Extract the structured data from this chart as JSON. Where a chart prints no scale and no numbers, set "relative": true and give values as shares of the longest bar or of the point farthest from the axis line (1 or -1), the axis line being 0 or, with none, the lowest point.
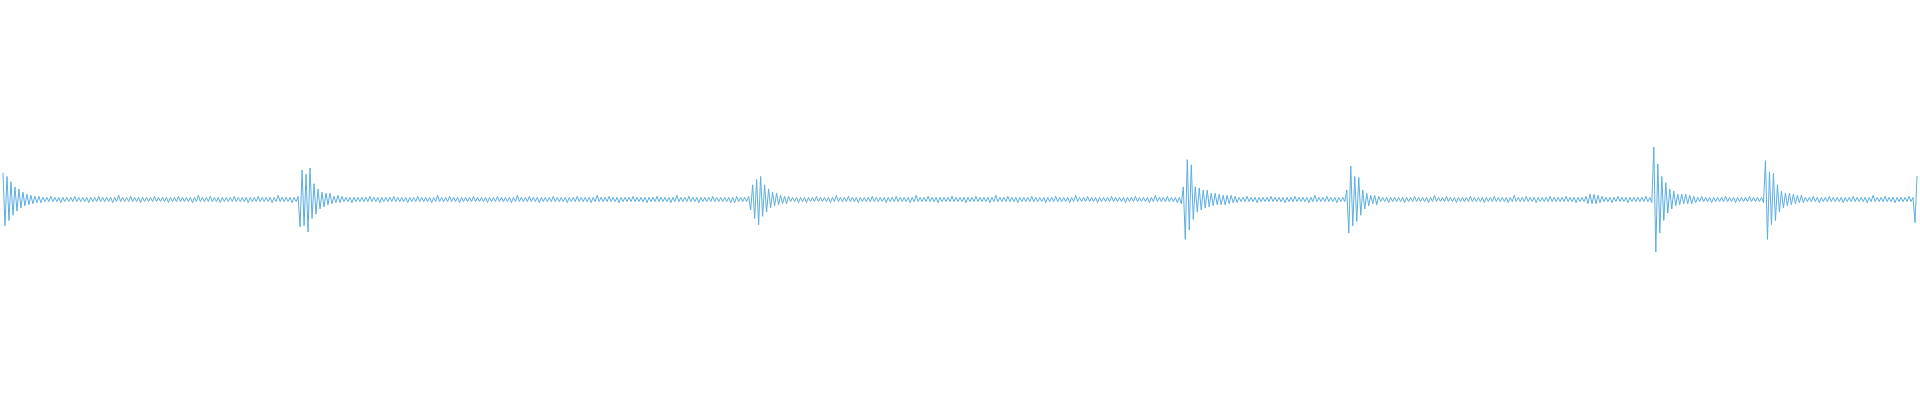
{
  "chart_data": {
    "type": "line",
    "relative": true,
    "color": "#5dade2",
    "marker": "none",
    "categories": [
      null,
      null,
      null,
      null,
      null,
      null,
      null,
      null,
      null,
      null,
      null,
      null,
      null,
      null,
      null,
      null,
      null,
      null,
      null,
      null,
      null,
      null,
      null,
      null,
      null,
      null,
      null,
      null,
      null,
      null,
      null,
      null,
      null,
      null,
      null,
      null,
      null,
      null,
      null,
      null,
      null,
      null,
      null,
      null,
      null,
      null,
      null,
      null,
      null,
      null,
      null,
      null,
      null,
      null,
      null,
      null,
      null,
      null,
      null,
      null,
      null,
      null,
      null,
      null,
      null,
      null,
      null,
      null,
      null,
      null,
      null,
      null,
      null,
      null,
      null,
      null,
      null,
      null,
      null,
      null,
      null,
      null,
      null,
      null,
      null,
      null,
      null,
      null,
      null,
      null,
      null,
      null,
      null,
      null,
      null,
      null,
      null,
      null,
      null,
      null,
      null,
      null,
      null,
      null,
      null,
      null,
      null,
      null,
      null,
      null,
      null,
      null,
      null,
      null,
      null,
      null,
      null,
      null,
      null,
      null,
      null,
      null,
      null,
      null,
      null,
      null,
      null,
      null,
      null,
      null,
      null,
      null,
      null,
      null,
      null,
      null,
      null,
      null,
      null,
      null,
      null,
      null,
      null,
      null,
      null,
      null,
      null,
      null,
      null,
      null,
      null,
      null,
      null,
      null,
      null,
      null,
      null,
      null,
      null,
      null,
      null,
      null,
      null,
      null,
      null,
      null,
      null,
      null,
      null,
      null,
      null,
      null,
      null,
      null,
      null,
      null,
      null,
      null,
      null,
      null,
      null,
      null,
      null,
      null,
      null,
      null,
      null,
      null,
      null,
      null,
      null,
      null,
      null,
      null,
      null,
      null,
      null,
      null,
      null,
      null,
      null,
      null,
      null,
      null,
      null,
      null,
      null,
      null,
      null,
      null,
      null,
      null,
      null,
      null,
      null,
      null,
      null,
      null,
      null,
      null,
      null,
      null,
      null,
      null,
      null,
      null,
      null,
      null,
      null,
      null,
      null,
      null,
      null,
      null,
      null,
      null,
      null,
      null,
      null,
      null,
      null,
      null,
      null,
      null,
      null,
      null,
      null,
      null,
      null,
      null,
      null,
      null,
      null,
      null,
      null,
      null,
      null,
      null,
      null,
      null,
      null,
      null,
      null,
      null,
      null,
      null,
      null,
      null,
      null,
      null,
      null,
      null,
      null,
      null,
      null,
      null,
      null,
      null,
      null,
      null,
      null,
      null,
      null,
      null,
      null,
      null,
      null,
      null,
      null,
      null,
      null,
      null,
      null,
      null,
      null,
      null,
      null,
      null,
      null,
      null,
      null,
      null,
      null,
      null,
      null,
      null,
      null,
      null,
      null,
      null,
      null,
      null,
      null,
      null,
      null,
      null,
      null,
      null,
      null,
      null,
      null,
      null,
      null,
      null,
      null,
      null,
      null,
      null,
      null,
      null,
      null,
      null,
      null,
      null,
      null,
      null,
      null,
      null,
      null,
      null,
      null,
      null,
      null,
      null,
      null,
      null,
      null,
      null,
      null,
      null,
      null,
      null,
      null,
      null,
      null,
      null,
      null,
      null,
      null,
      null,
      null,
      null,
      null,
      null,
      null,
      null,
      null,
      null,
      null,
      null,
      null,
      null,
      null,
      null,
      null,
      null,
      null,
      null,
      null,
      null,
      null,
      null,
      null,
      null,
      null,
      null,
      null,
      null,
      null,
      null,
      null,
      null,
      null,
      null,
      null,
      null,
      null,
      null,
      null,
      null,
      null,
      null,
      null,
      null,
      null,
      null,
      null,
      null,
      null,
      null,
      null,
      null,
      null,
      null,
      null,
      null,
      null,
      null,
      null,
      null,
      null,
      null,
      null,
      null,
      null,
      null,
      null,
      null,
      null,
      null,
      null,
      null,
      null,
      null,
      null,
      null,
      null,
      null,
      null,
      null,
      null,
      null,
      null,
      null,
      null,
      null,
      null,
      null,
      null,
      null,
      null,
      null,
      null,
      null,
      null,
      null,
      null,
      null,
      null,
      null,
      null,
      null,
      null,
      null,
      null,
      null,
      null,
      null,
      null,
      null,
      null,
      null,
      null,
      null,
      null,
      null,
      null,
      null,
      null,
      null,
      null,
      null,
      null,
      null,
      null,
      null,
      null,
      null,
      null,
      null,
      null,
      null,
      null,
      null,
      null,
      null,
      null,
      null,
      null,
      null,
      null,
      null,
      null,
      null,
      null,
      null,
      null,
      null,
      null,
      null,
      null,
      null,
      null,
      null,
      null,
      null,
      null,
      null,
      null,
      null,
      null,
      null,
      null,
      null,
      null,
      null,
      null,
      null,
      null,
      null,
      null,
      null,
      null,
      null,
      null,
      null,
      null,
      null,
      null,
      null,
      null,
      null,
      null,
      null,
      null,
      null,
      null,
      null,
      null,
      null,
      null,
      null,
      null,
      null,
      null,
      null,
      null,
      null,
      null,
      null,
      null,
      null,
      null,
      null,
      null,
      null,
      null,
      null,
      null,
      null,
      null,
      null,
      null,
      null,
      null,
      null,
      null,
      null,
      null,
      null,
      null,
      null,
      null,
      null,
      null,
      null,
      null,
      null,
      null,
      null,
      null,
      null,
      null,
      null,
      null,
      null,
      null,
      null,
      null,
      null,
      null,
      null,
      null,
      null,
      null,
      null,
      null,
      null,
      null,
      null,
      null,
      null,
      null,
      null,
      null,
      null,
      null,
      null,
      null,
      null,
      null,
      null,
      null,
      null,
      null,
      null,
      null,
      null,
      null,
      null,
      null,
      null,
      null,
      null,
      null,
      null,
      null,
      null,
      null,
      null,
      null,
      null,
      null,
      null,
      null,
      null,
      null,
      null,
      null,
      null,
      null,
      null,
      null,
      null,
      null,
      null,
      null,
      null,
      null,
      null,
      null,
      null,
      null,
      null,
      null,
      null,
      null,
      null,
      null,
      null,
      null,
      null,
      null,
      null,
      null,
      null,
      null,
      null,
      null,
      null,
      null,
      null,
      null,
      null,
      null,
      null,
      null,
      null,
      null,
      null,
      null,
      null,
      null,
      null,
      null,
      null,
      null,
      null,
      null,
      null,
      null,
      null,
      null,
      null,
      null,
      null,
      null,
      null,
      null,
      null,
      null,
      null,
      null,
      null,
      null,
      null,
      null,
      null,
      null,
      null,
      null,
      null,
      null,
      null,
      null,
      null,
      null,
      null,
      null,
      null,
      null,
      null,
      null,
      null,
      null,
      null,
      null,
      null,
      null,
      null,
      null,
      null,
      null,
      null,
      null,
      null,
      null,
      null,
      null,
      null,
      null,
      null,
      null,
      null,
      null,
      null,
      null,
      null,
      null,
      null,
      null,
      null,
      null,
      null,
      null,
      null,
      null,
      null,
      null,
      null,
      null,
      null,
      null,
      null,
      null,
      null,
      null,
      null,
      null,
      null,
      null,
      null,
      null,
      null,
      null,
      null,
      null,
      null,
      null,
      null,
      null,
      null,
      null,
      null,
      null,
      null,
      null,
      null,
      null,
      null,
      null,
      null,
      null,
      null,
      null,
      null,
      null,
      null,
      null,
      null,
      null,
      null,
      null,
      null,
      null,
      null,
      null,
      null,
      null,
      null,
      null,
      null,
      null,
      null,
      null,
      null,
      null,
      null,
      null,
      null,
      null,
      null,
      null,
      null,
      null,
      null,
      null,
      null,
      null,
      null,
      null,
      null,
      null,
      null,
      null,
      null,
      null,
      null,
      null,
      null,
      null,
      null,
      null,
      null,
      null,
      null,
      null,
      null,
      null,
      null,
      null,
      null,
      null,
      null,
      null,
      null,
      null,
      null,
      null,
      null,
      null,
      null,
      null,
      null,
      null,
      null,
      null,
      null,
      null,
      null,
      null,
      null,
      null,
      null,
      null,
      null,
      null,
      null,
      null,
      null,
      null,
      null,
      null,
      null,
      null,
      null,
      null,
      null,
      null,
      null,
      null,
      null,
      null,
      null,
      null,
      null,
      null,
      null,
      null,
      null,
      null,
      null,
      null,
      null,
      null,
      null,
      null,
      null,
      null,
      null,
      null,
      null,
      null,
      null,
      null,
      null,
      null,
      null,
      null,
      null,
      null,
      null,
      null,
      null,
      null,
      null,
      null,
      null,
      null,
      null,
      null,
      null,
      null,
      null,
      null,
      null,
      null,
      null,
      null,
      null,
      null,
      null,
      null,
      null,
      null,
      null,
      null,
      null,
      null,
      null,
      null
    ],
    "values": [
      0.75,
      0.25,
      0.72,
      0.3,
      0.67,
      0.35,
      0.62,
      0.39,
      0.6,
      0.42,
      0.57,
      0.44,
      0.55,
      0.45,
      0.54,
      0.46,
      0.53,
      0.47,
      0.53,
      0.47,
      0.52,
      0.48,
      0.52,
      0.48,
      0.53,
      0.48,
      0.52,
      0.48,
      0.52,
      0.47,
      0.52,
      0.48,
      0.52,
      0.48,
      0.52,
      0.48,
      0.53,
      0.48,
      0.52,
      0.48,
      0.52,
      0.48,
      0.52,
      0.47,
      0.52,
      0.48,
      0.52,
      0.48,
      0.53,
      0.48,
      0.52,
      0.48,
      0.52,
      0.48,
      0.52,
      0.47,
      0.52,
      0.48,
      0.54,
      0.48,
      0.52,
      0.48,
      0.52,
      0.48,
      0.53,
      0.48,
      0.52,
      0.48,
      0.52,
      0.47,
      0.52,
      0.48,
      0.52,
      0.48,
      0.52,
      0.48,
      0.53,
      0.48,
      0.52,
      0.48,
      0.52,
      0.48,
      0.52,
      0.47,
      0.52,
      0.48,
      0.52,
      0.48,
      0.53,
      0.48,
      0.52,
      0.48,
      0.52,
      0.48,
      0.52,
      0.47,
      0.52,
      0.48,
      0.54,
      0.48,
      0.52,
      0.48,
      0.52,
      0.48,
      0.53,
      0.48,
      0.52,
      0.48,
      0.52,
      0.47,
      0.52,
      0.48,
      0.52,
      0.48,
      0.52,
      0.48,
      0.53,
      0.48,
      0.52,
      0.48,
      0.52,
      0.48,
      0.52,
      0.47,
      0.52,
      0.48,
      0.52,
      0.48,
      0.53,
      0.48,
      0.52,
      0.48,
      0.52,
      0.48,
      0.52,
      0.47,
      0.52,
      0.48,
      0.54,
      0.48,
      0.52,
      0.48,
      0.52,
      0.48,
      0.52,
      0.47,
      0.52,
      0.48,
      0.53,
      0.24,
      0.78,
      0.25,
      0.74,
      0.19,
      0.8,
      0.32,
      0.65,
      0.36,
      0.6,
      0.41,
      0.57,
      0.43,
      0.56,
      0.45,
      0.56,
      0.46,
      0.53,
      0.47,
      0.54,
      0.47,
      0.53,
      0.48,
      0.52,
      0.48,
      0.52,
      0.47,
      0.52,
      0.48,
      0.52,
      0.48,
      0.52,
      0.48,
      0.52,
      0.48,
      0.53,
      0.48,
      0.52,
      0.48,
      0.52,
      0.47,
      0.52,
      0.48,
      0.52,
      0.48,
      0.52,
      0.48,
      0.53,
      0.48,
      0.52,
      0.48,
      0.52,
      0.48,
      0.52,
      0.47,
      0.52,
      0.48,
      0.52,
      0.48,
      0.53,
      0.48,
      0.52,
      0.48,
      0.52,
      0.48,
      0.52,
      0.47,
      0.52,
      0.48,
      0.54,
      0.48,
      0.52,
      0.48,
      0.52,
      0.48,
      0.53,
      0.48,
      0.52,
      0.48,
      0.52,
      0.47,
      0.52,
      0.48,
      0.52,
      0.48,
      0.52,
      0.48,
      0.53,
      0.48,
      0.52,
      0.48,
      0.52,
      0.48,
      0.52,
      0.47,
      0.52,
      0.48,
      0.52,
      0.48,
      0.53,
      0.48,
      0.52,
      0.48,
      0.52,
      0.48,
      0.52,
      0.47,
      0.52,
      0.48,
      0.54,
      0.48,
      0.52,
      0.48,
      0.52,
      0.48,
      0.53,
      0.48,
      0.52,
      0.48,
      0.52,
      0.47,
      0.52,
      0.48,
      0.52,
      0.48,
      0.52,
      0.48,
      0.53,
      0.48,
      0.52,
      0.48,
      0.52,
      0.48,
      0.52,
      0.47,
      0.52,
      0.48,
      0.52,
      0.48,
      0.53,
      0.48,
      0.52,
      0.48,
      0.52,
      0.48,
      0.52,
      0.47,
      0.52,
      0.48,
      0.54,
      0.48,
      0.52,
      0.48,
      0.52,
      0.48,
      0.53,
      0.48,
      0.52,
      0.48,
      0.52,
      0.47,
      0.52,
      0.48,
      0.52,
      0.48,
      0.52,
      0.48,
      0.53,
      0.48,
      0.52,
      0.48,
      0.52,
      0.48,
      0.52,
      0.47,
      0.52,
      0.48,
      0.52,
      0.48,
      0.53,
      0.48,
      0.52,
      0.48,
      0.52,
      0.48,
      0.52,
      0.47,
      0.52,
      0.48,
      0.54,
      0.48,
      0.52,
      0.48,
      0.52,
      0.48,
      0.53,
      0.48,
      0.52,
      0.48,
      0.52,
      0.47,
      0.52,
      0.48,
      0.52,
      0.48,
      0.52,
      0.48,
      0.53,
      0.48,
      0.52,
      0.48,
      0.52,
      0.48,
      0.52,
      0.48,
      0.52,
      0.47,
      0.52,
      0.47,
      0.53,
      0.48,
      0.52,
      0.48,
      0.52,
      0.48,
      0.53,
      0.4,
      0.64,
      0.32,
      0.69,
      0.26,
      0.72,
      0.34,
      0.64,
      0.38,
      0.6,
      0.42,
      0.57,
      0.44,
      0.56,
      0.45,
      0.54,
      0.46,
      0.53,
      0.46,
      0.53,
      0.48,
      0.52,
      0.48,
      0.52,
      0.47,
      0.52,
      0.48,
      0.52,
      0.47,
      0.52,
      0.48,
      0.52,
      0.48,
      0.53,
      0.48,
      0.52,
      0.48,
      0.52,
      0.48,
      0.52,
      0.47,
      0.52,
      0.48,
      0.54,
      0.48,
      0.52,
      0.48,
      0.52,
      0.48,
      0.53,
      0.48,
      0.52,
      0.48,
      0.52,
      0.47,
      0.52,
      0.48,
      0.52,
      0.48,
      0.52,
      0.48,
      0.53,
      0.48,
      0.52,
      0.48,
      0.52,
      0.48,
      0.52,
      0.47,
      0.52,
      0.48,
      0.52,
      0.48,
      0.53,
      0.48,
      0.52,
      0.48,
      0.52,
      0.48,
      0.52,
      0.47,
      0.52,
      0.48,
      0.54,
      0.48,
      0.52,
      0.48,
      0.52,
      0.48,
      0.53,
      0.48,
      0.52,
      0.48,
      0.52,
      0.47,
      0.52,
      0.48,
      0.52,
      0.48,
      0.52,
      0.48,
      0.53,
      0.48,
      0.52,
      0.48,
      0.52,
      0.48,
      0.52,
      0.47,
      0.52,
      0.48,
      0.52,
      0.48,
      0.53,
      0.48,
      0.52,
      0.48,
      0.52,
      0.48,
      0.52,
      0.47,
      0.52,
      0.48,
      0.54,
      0.48,
      0.52,
      0.48,
      0.52,
      0.48,
      0.53,
      0.48,
      0.52,
      0.48,
      0.52,
      0.47,
      0.52,
      0.48,
      0.52,
      0.48,
      0.52,
      0.48,
      0.53,
      0.48,
      0.52,
      0.48,
      0.52,
      0.48,
      0.52,
      0.47,
      0.52,
      0.48,
      0.52,
      0.48,
      0.53,
      0.48,
      0.52,
      0.48,
      0.52,
      0.48,
      0.52,
      0.47,
      0.52,
      0.48,
      0.54,
      0.48,
      0.52,
      0.48,
      0.52,
      0.48,
      0.53,
      0.48,
      0.52,
      0.48,
      0.52,
      0.47,
      0.52,
      0.48,
      0.52,
      0.48,
      0.52,
      0.48,
      0.53,
      0.48,
      0.52,
      0.48,
      0.52,
      0.48,
      0.52,
      0.47,
      0.52,
      0.48,
      0.52,
      0.48,
      0.53,
      0.48,
      0.52,
      0.48,
      0.52,
      0.48,
      0.52,
      0.47,
      0.52,
      0.48,
      0.54,
      0.48,
      0.52,
      0.48,
      0.52,
      0.48,
      0.53,
      0.48,
      0.52,
      0.48,
      0.52,
      0.47,
      0.52,
      0.46,
      0.62,
      0.12,
      0.88,
      0.21,
      0.83,
      0.31,
      0.62,
      0.38,
      0.61,
      0.4,
      0.59,
      0.42,
      0.59,
      0.43,
      0.56,
      0.44,
      0.56,
      0.45,
      0.55,
      0.45,
      0.54,
      0.45,
      0.54,
      0.46,
      0.54,
      0.47,
      0.53,
      0.47,
      0.52,
      0.48,
      0.52,
      0.48,
      0.53,
      0.48,
      0.52,
      0.48,
      0.52,
      0.47,
      0.52,
      0.48,
      0.52,
      0.48,
      0.52,
      0.48,
      0.53,
      0.48,
      0.52,
      0.48,
      0.52,
      0.48,
      0.52,
      0.47,
      0.52,
      0.48,
      0.52,
      0.48,
      0.53,
      0.48,
      0.52,
      0.48,
      0.52,
      0.48,
      0.52,
      0.47,
      0.52,
      0.48,
      0.54,
      0.48,
      0.52,
      0.48,
      0.52,
      0.48,
      0.53,
      0.48,
      0.52,
      0.48,
      0.52,
      0.47,
      0.52,
      0.48,
      0.52,
      0.48,
      0.59,
      0.18,
      0.82,
      0.25,
      0.72,
      0.29,
      0.71,
      0.35,
      0.59,
      0.41,
      0.56,
      0.44,
      0.54,
      0.46,
      0.54,
      0.45,
      0.53,
      0.48,
      0.52,
      0.48,
      0.52,
      0.47,
      0.52,
      0.48,
      0.52,
      0.48,
      0.52,
      0.48,
      0.52,
      0.47,
      0.52,
      0.48,
      0.52,
      0.48,
      0.53,
      0.48,
      0.52,
      0.48,
      0.52,
      0.48,
      0.52,
      0.47,
      0.52,
      0.48,
      0.54,
      0.48,
      0.52,
      0.48,
      0.52,
      0.48,
      0.53,
      0.48,
      0.52,
      0.48,
      0.52,
      0.47,
      0.52,
      0.48,
      0.52,
      0.48,
      0.52,
      0.48,
      0.53,
      0.48,
      0.52,
      0.48,
      0.52,
      0.48,
      0.52,
      0.47,
      0.52,
      0.48,
      0.52,
      0.48,
      0.53,
      0.48,
      0.52,
      0.48,
      0.52,
      0.48,
      0.52,
      0.47,
      0.52,
      0.48,
      0.54,
      0.48,
      0.52,
      0.48,
      0.52,
      0.48,
      0.53,
      0.48,
      0.52,
      0.48,
      0.52,
      0.47,
      0.52,
      0.48,
      0.52,
      0.48,
      0.52,
      0.48,
      0.53,
      0.48,
      0.52,
      0.48,
      0.52,
      0.48,
      0.52,
      0.48,
      0.53,
      0.48,
      0.52,
      0.48,
      0.52,
      0.47,
      0.52,
      0.48,
      0.52,
      0.48,
      0.53,
      0.46,
      0.55,
      0.46,
      0.55,
      0.46,
      0.54,
      0.47,
      0.53,
      0.48,
      0.52,
      0.48,
      0.52,
      0.47,
      0.52,
      0.48,
      0.53,
      0.48,
      0.52,
      0.48,
      0.52,
      0.47,
      0.52,
      0.48,
      0.52,
      0.48,
      0.52,
      0.48,
      0.52,
      0.48,
      0.53,
      0.48,
      0.52,
      0.47,
      1,
      0,
      0.84,
      0.18,
      0.72,
      0.3,
      0.66,
      0.37,
      0.6,
      0.41,
      0.58,
      0.44,
      0.55,
      0.45,
      0.55,
      0.46,
      0.55,
      0.46,
      0.54,
      0.46,
      0.53,
      0.47,
      0.52,
      0.48,
      0.53,
      0.48,
      0.52,
      0.48,
      0.52,
      0.47,
      0.52,
      0.48,
      0.52,
      0.48,
      0.52,
      0.48,
      0.53,
      0.48,
      0.52,
      0.48,
      0.52,
      0.47,
      0.52,
      0.48,
      0.52,
      0.48,
      0.52,
      0.48,
      0.53,
      0.48,
      0.52,
      0.48,
      0.52,
      0.48,
      0.52,
      0.47,
      0.87,
      0.12,
      0.76,
      0.26,
      0.75,
      0.3,
      0.64,
      0.38,
      0.58,
      0.42,
      0.56,
      0.44,
      0.56,
      0.45,
      0.55,
      0.46,
      0.54,
      0.47,
      0.54,
      0.47,
      0.52,
      0.48,
      0.52,
      0.48,
      0.53,
      0.48,
      0.52,
      0.47,
      0.52,
      0.48,
      0.52,
      0.48,
      0.53,
      0.48,
      0.52,
      0.48,
      0.52,
      0.48,
      0.52,
      0.47,
      0.52,
      0.48,
      0.52,
      0.48,
      0.53,
      0.48,
      0.52,
      0.48,
      0.52,
      0.48,
      0.52,
      0.47,
      0.52,
      0.48,
      0.54,
      0.48,
      0.52,
      0.48,
      0.52,
      0.48,
      0.53,
      0.48,
      0.52,
      0.48,
      0.52,
      0.47,
      0.52,
      0.48,
      0.52,
      0.48,
      0.52,
      0.48,
      0.53,
      0.48,
      0.52,
      0.28,
      0.72
    ]
  }
}
